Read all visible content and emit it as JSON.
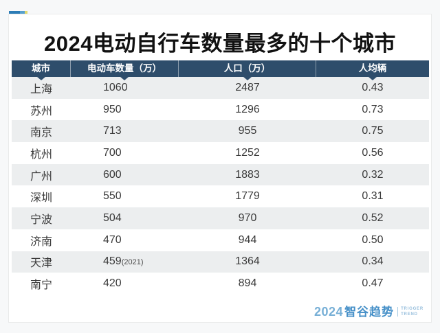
{
  "page": {
    "title": "2024电动自行车数量最多的十个城市"
  },
  "chart_data": {
    "type": "table",
    "title": "2024电动自行车数量最多的十个城市",
    "columns": [
      "城市",
      "电动车数量（万）",
      "人口（万）",
      "人均辆"
    ],
    "rows": [
      [
        "上海",
        "1060",
        "2487",
        "0.43"
      ],
      [
        "苏州",
        "950",
        "1296",
        "0.73"
      ],
      [
        "南京",
        "713",
        "955",
        "0.75"
      ],
      [
        "杭州",
        "700",
        "1252",
        "0.56"
      ],
      [
        "广州",
        "600",
        "1883",
        "0.32"
      ],
      [
        "深圳",
        "550",
        "1779",
        "0.31"
      ],
      [
        "宁波",
        "504",
        "970",
        "0.52"
      ],
      [
        "济南",
        "470",
        "944",
        "0.50"
      ],
      [
        "天津",
        "459(2021)",
        "1364",
        "0.34"
      ],
      [
        "南宁",
        "420",
        "894",
        "0.47"
      ]
    ],
    "layout": {
      "zebra_striping": true,
      "header_background": "#2e4d6b",
      "stripe_color": "#eceeef",
      "column_alignments": [
        "center",
        "left",
        "center",
        "center"
      ]
    }
  },
  "footer": {
    "logo_year": "2024",
    "logo_name": "智谷趋势",
    "logo_sub_line1": "TRIGGER",
    "logo_sub_line2": "TREND"
  },
  "colors": {
    "header_navy": "#2e4d6b",
    "stripe_gray": "#eceeef",
    "icon_blue_dark": "#2c7cb6",
    "icon_blue_light": "#58a0ce",
    "icon_yellow": "#e0d86e",
    "logo_blue": "#4690c8"
  }
}
